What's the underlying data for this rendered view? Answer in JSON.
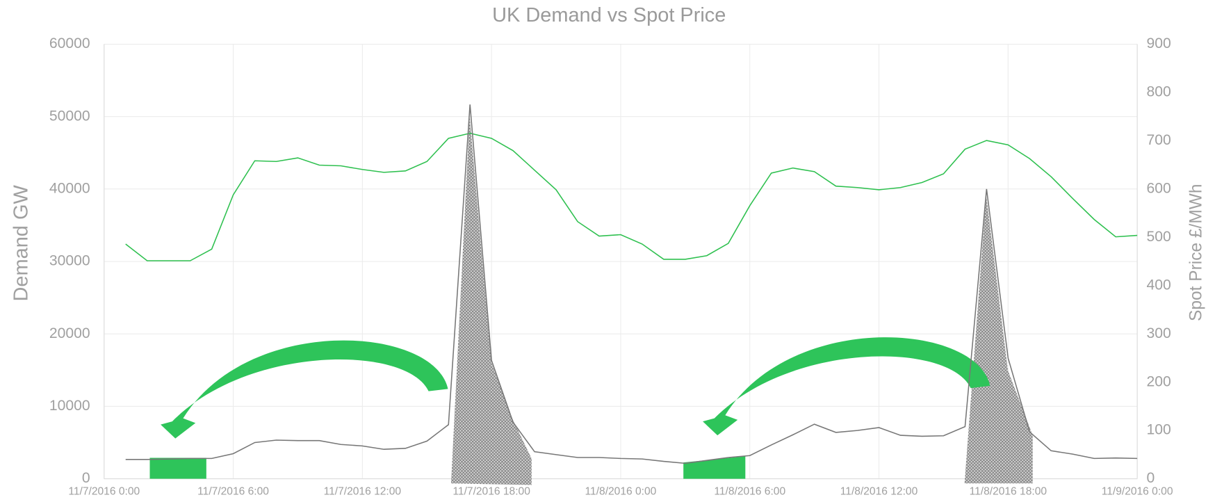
{
  "chart_data": {
    "type": "line",
    "title": "UK Demand vs Spot Price",
    "y_label": "Demand GW",
    "y2_label": "Spot Price £/MWh",
    "x": [
      1,
      2,
      3,
      4,
      5,
      6,
      7,
      8,
      9,
      10,
      11,
      12,
      13,
      14,
      15,
      16,
      17,
      18,
      19,
      20,
      21,
      22,
      23,
      24,
      25,
      26,
      27,
      28,
      29,
      30,
      31,
      32,
      33,
      34,
      35,
      36,
      37,
      38,
      39,
      40,
      41,
      42,
      43,
      44,
      45,
      46,
      47,
      48
    ],
    "xlim": [
      0,
      48
    ],
    "xticks": [
      {
        "value": 0,
        "label": "11/7/2016 0:00"
      },
      {
        "value": 6,
        "label": "11/7/2016 6:00"
      },
      {
        "value": 12,
        "label": "11/7/2016 12:00"
      },
      {
        "value": 18,
        "label": "11/7/2016 18:00"
      },
      {
        "value": 24,
        "label": "11/8/2016 0:00"
      },
      {
        "value": 30,
        "label": "11/8/2016 6:00"
      },
      {
        "value": 36,
        "label": "11/8/2016 12:00"
      },
      {
        "value": 42,
        "label": "11/8/2016 18:00"
      },
      {
        "value": 48,
        "label": "11/9/2016 0:00"
      }
    ],
    "ylim": [
      0,
      60000
    ],
    "yticks": [
      0,
      10000,
      20000,
      30000,
      40000,
      50000,
      60000
    ],
    "y2lim": [
      0,
      900
    ],
    "y2ticks": [
      0,
      100,
      200,
      300,
      400,
      500,
      600,
      700,
      800,
      900
    ],
    "grid": true,
    "series": [
      {
        "color": "#2ec04f",
        "values": [
          32400,
          30100,
          30100,
          30100,
          31700,
          39200,
          43900,
          43800,
          44300,
          43300,
          43200,
          42700,
          42300,
          42500,
          43800,
          47000,
          47700,
          47000,
          45300,
          42600,
          39900,
          35500,
          33500,
          33700,
          32400,
          30300,
          30300,
          30800,
          32500,
          37700,
          42200,
          42900,
          42400,
          40400,
          40200,
          39900,
          40200,
          40900,
          42100,
          45500,
          46700,
          46100,
          44200,
          41700,
          38700,
          35800,
          33400,
          33600
        ]
      },
      {
        "color": "#777777",
        "axis": "y2",
        "values": [
          40,
          40,
          41,
          42,
          42,
          52,
          75,
          80,
          79,
          79,
          71,
          68,
          61,
          63,
          78,
          112,
          775,
          245,
          117,
          56,
          50,
          44,
          44,
          42,
          41,
          36,
          32,
          38,
          44,
          48,
          70,
          91,
          113,
          96,
          100,
          106,
          90,
          88,
          89,
          108,
          600,
          250,
          97,
          58,
          51,
          42,
          43,
          42
        ]
      }
    ]
  }
}
